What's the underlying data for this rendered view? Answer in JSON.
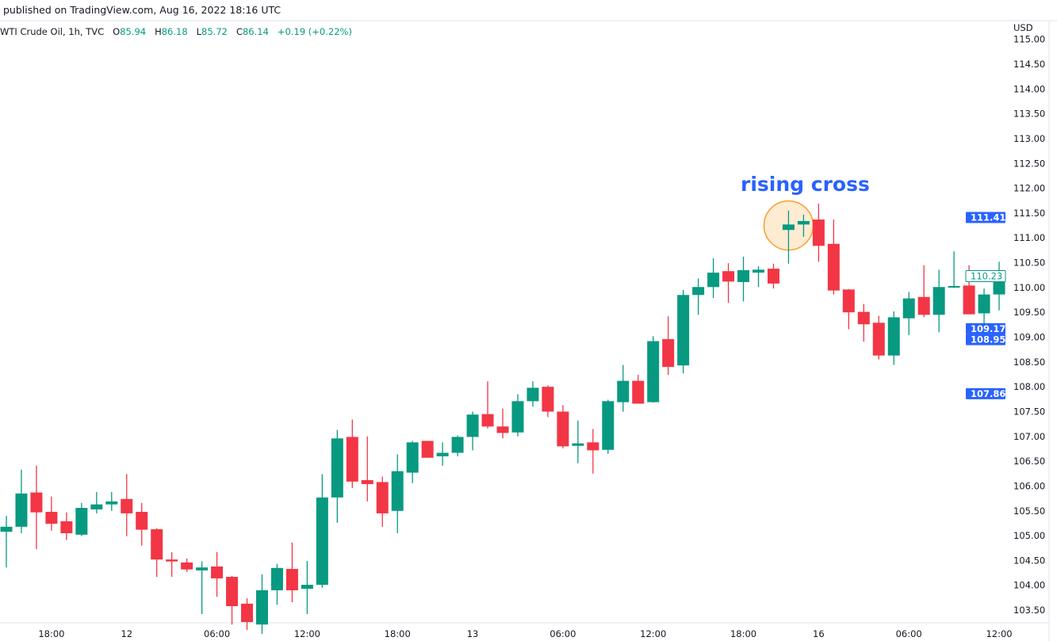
{
  "header": {
    "published": "published on TradingView.com, Aug 16, 2022 18:16 UTC",
    "symbol": "WTI Crude Oil, 1h, TVC",
    "o_label": "O",
    "o_value": "85.94",
    "h_label": "H",
    "h_value": "86.18",
    "l_label": "L",
    "l_value": "85.72",
    "c_label": "C",
    "c_value": "86.14",
    "change": "+0.19 (+0.22%)"
  },
  "colors": {
    "up": "#089981",
    "down": "#f23645",
    "accent": "#2962ff",
    "highlight_fill": "#fdebd2",
    "highlight_stroke": "#f7a12b"
  },
  "chart_data": {
    "type": "candlestick",
    "currency": "USD",
    "ylim": [
      103.3,
      115.1
    ],
    "yticks": [
      "103.50",
      "104.00",
      "104.50",
      "105.00",
      "105.50",
      "106.00",
      "106.50",
      "107.00",
      "107.50",
      "108.00",
      "108.50",
      "109.00",
      "109.50",
      "110.00",
      "110.50",
      "111.00",
      "111.50",
      "112.00",
      "112.50",
      "113.00",
      "113.50",
      "114.00",
      "114.50",
      "115.00"
    ],
    "xticks": [
      {
        "candle": 3,
        "label": "18:00"
      },
      {
        "candle": 8,
        "label": "12"
      },
      {
        "candle": 14,
        "label": "06:00"
      },
      {
        "candle": 20,
        "label": "12:00"
      },
      {
        "candle": 26,
        "label": "18:00"
      },
      {
        "candle": 31,
        "label": "13"
      },
      {
        "candle": 37,
        "label": "06:00"
      },
      {
        "candle": 43,
        "label": "12:00"
      },
      {
        "candle": 49,
        "label": "18:00"
      },
      {
        "candle": 54,
        "label": "16"
      },
      {
        "candle": 60,
        "label": "06:00"
      },
      {
        "candle": 66,
        "label": "12:00"
      }
    ],
    "ohlc": [
      [
        105.08,
        105.4,
        104.36,
        105.18
      ],
      [
        105.18,
        106.33,
        105.05,
        105.85
      ],
      [
        105.87,
        106.41,
        104.73,
        105.47
      ],
      [
        105.48,
        105.79,
        105.1,
        105.24
      ],
      [
        105.29,
        105.47,
        104.91,
        105.05
      ],
      [
        105.02,
        105.66,
        104.99,
        105.56
      ],
      [
        105.53,
        105.88,
        105.45,
        105.63
      ],
      [
        105.63,
        105.88,
        105.5,
        105.69
      ],
      [
        105.74,
        106.24,
        104.99,
        105.45
      ],
      [
        105.48,
        105.66,
        104.8,
        105.12
      ],
      [
        105.13,
        105.15,
        104.17,
        104.52
      ],
      [
        104.52,
        104.67,
        104.17,
        104.48
      ],
      [
        104.46,
        104.54,
        104.27,
        104.32
      ],
      [
        104.3,
        104.48,
        103.42,
        104.36
      ],
      [
        104.38,
        104.67,
        103.77,
        104.14
      ],
      [
        104.17,
        104.19,
        103.21,
        103.58
      ],
      [
        103.63,
        103.74,
        103.1,
        103.26
      ],
      [
        103.21,
        104.22,
        103.02,
        103.9
      ],
      [
        103.9,
        104.43,
        103.61,
        104.35
      ],
      [
        104.33,
        104.86,
        103.66,
        103.9
      ],
      [
        103.93,
        104.49,
        103.42,
        104.01
      ],
      [
        104.01,
        106.24,
        103.95,
        105.77
      ],
      [
        105.77,
        107.13,
        105.26,
        106.96
      ],
      [
        106.99,
        107.34,
        105.96,
        106.09
      ],
      [
        106.12,
        107.0,
        105.69,
        106.04
      ],
      [
        106.08,
        106.19,
        105.18,
        105.45
      ],
      [
        105.5,
        106.64,
        105.05,
        106.3
      ],
      [
        106.27,
        106.91,
        106.06,
        106.88
      ],
      [
        106.91,
        106.91,
        106.57,
        106.57
      ],
      [
        106.6,
        106.88,
        106.41,
        106.67
      ],
      [
        106.67,
        107.02,
        106.6,
        106.99
      ],
      [
        106.99,
        107.5,
        106.72,
        107.44
      ],
      [
        107.45,
        108.11,
        107.16,
        107.2
      ],
      [
        107.2,
        107.56,
        106.96,
        107.07
      ],
      [
        107.08,
        107.85,
        107.0,
        107.71
      ],
      [
        107.71,
        108.11,
        107.6,
        107.98
      ],
      [
        108.0,
        108.03,
        107.39,
        107.5
      ],
      [
        107.5,
        107.63,
        106.76,
        106.8
      ],
      [
        106.81,
        107.32,
        106.46,
        106.86
      ],
      [
        106.88,
        107.15,
        106.25,
        106.72
      ],
      [
        106.73,
        107.74,
        106.65,
        107.71
      ],
      [
        107.69,
        108.44,
        107.5,
        108.12
      ],
      [
        108.12,
        108.24,
        107.66,
        107.66
      ],
      [
        107.69,
        109.02,
        107.68,
        108.92
      ],
      [
        108.96,
        109.42,
        108.24,
        108.4
      ],
      [
        108.43,
        109.95,
        108.27,
        109.85
      ],
      [
        109.85,
        110.18,
        109.45,
        110.01
      ],
      [
        110.01,
        110.59,
        109.79,
        110.3
      ],
      [
        110.33,
        110.49,
        109.69,
        110.12
      ],
      [
        110.11,
        110.62,
        109.72,
        110.35
      ],
      [
        110.3,
        110.43,
        110.01,
        110.36
      ],
      [
        110.38,
        110.48,
        109.98,
        110.08
      ],
      [
        111.16,
        111.55,
        110.48,
        111.27
      ],
      [
        111.27,
        111.47,
        111.02,
        111.34
      ],
      [
        111.37,
        111.69,
        110.52,
        110.84
      ],
      [
        110.88,
        111.37,
        109.86,
        109.94
      ],
      [
        109.96,
        109.97,
        109.16,
        109.5
      ],
      [
        109.51,
        109.67,
        108.91,
        109.26
      ],
      [
        109.29,
        109.43,
        108.55,
        108.63
      ],
      [
        108.63,
        109.52,
        108.44,
        109.4
      ],
      [
        109.38,
        109.91,
        109.04,
        109.78
      ],
      [
        109.81,
        110.45,
        109.4,
        109.45
      ],
      [
        109.45,
        110.36,
        109.1,
        110.01
      ],
      [
        110.01,
        110.73,
        109.99,
        110.03
      ],
      [
        110.04,
        110.45,
        109.46,
        109.46
      ],
      [
        109.48,
        109.98,
        109.02,
        109.86
      ],
      [
        109.86,
        110.52,
        109.54,
        110.24
      ]
    ],
    "price_labels": [
      {
        "value": "111.41",
        "style": "filled"
      },
      {
        "value": "110.23",
        "style": "outline"
      },
      {
        "value": "109.17",
        "style": "filled"
      },
      {
        "value": "108.95",
        "style": "filled"
      },
      {
        "value": "107.86",
        "style": "filled"
      }
    ],
    "annotation": {
      "text": "rising cross",
      "candle": 52,
      "price": 111.25
    }
  }
}
